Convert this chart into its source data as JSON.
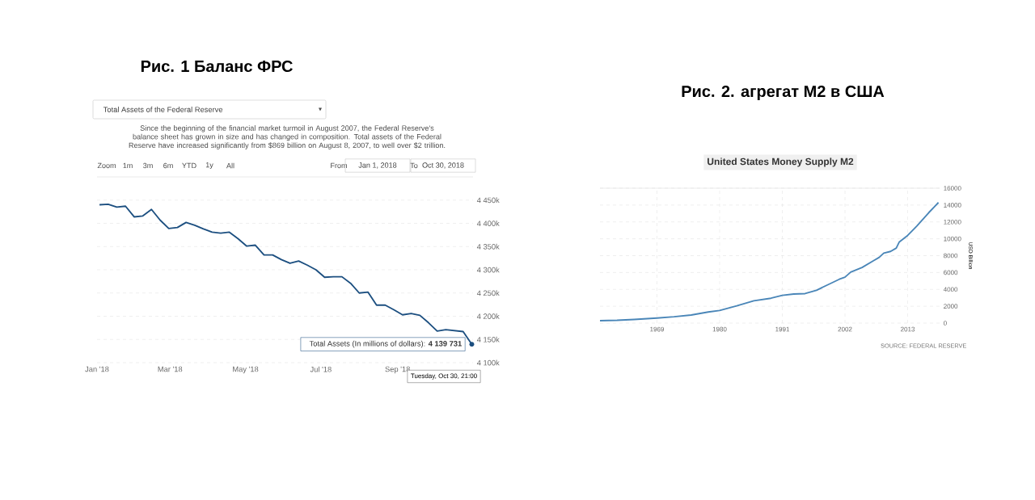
{
  "chart_data": [
    {
      "type": "line",
      "title": "Рис. 1 Баланс ФРС",
      "subtitle": "Total Assets of the Federal Reserve",
      "x": [
        "2018-01-03",
        "2018-01-10",
        "2018-01-17",
        "2018-01-24",
        "2018-01-31",
        "2018-02-07",
        "2018-02-14",
        "2018-02-21",
        "2018-02-28",
        "2018-03-07",
        "2018-03-14",
        "2018-03-21",
        "2018-03-28",
        "2018-04-04",
        "2018-04-11",
        "2018-04-18",
        "2018-04-25",
        "2018-05-02",
        "2018-05-09",
        "2018-05-16",
        "2018-05-23",
        "2018-05-30",
        "2018-06-06",
        "2018-06-13",
        "2018-06-20",
        "2018-06-27",
        "2018-07-04",
        "2018-07-11",
        "2018-07-18",
        "2018-07-25",
        "2018-08-01",
        "2018-08-08",
        "2018-08-15",
        "2018-08-22",
        "2018-08-29",
        "2018-09-05",
        "2018-09-12",
        "2018-09-19",
        "2018-09-26",
        "2018-10-03",
        "2018-10-10",
        "2018-10-17",
        "2018-10-24",
        "2018-10-31"
      ],
      "series": [
        {
          "color": "#1c4f80",
          "values": [
            4440000,
            4441000,
            4435000,
            4437000,
            4414000,
            4416000,
            4430000,
            4407000,
            4389000,
            4391000,
            4402000,
            4396000,
            4388000,
            4381000,
            4379000,
            4381000,
            4367000,
            4351000,
            4353000,
            4332000,
            4332000,
            4322000,
            4314000,
            4319000,
            4310000,
            4300000,
            4284000,
            4285000,
            4285000,
            4271000,
            4250000,
            4252000,
            4224000,
            4224000,
            4214000,
            4203000,
            4206000,
            4202000,
            4186000,
            4168000,
            4171000,
            4169000,
            4167000,
            4139731
          ]
        }
      ],
      "xlim": [
        "2018-01-01",
        "2018-11-01"
      ],
      "xticks": [
        {
          "value": "2018-01-01",
          "label": "Jan '18"
        },
        {
          "value": "2018-03-01",
          "label": "Mar '18"
        },
        {
          "value": "2018-05-01",
          "label": "May '18"
        },
        {
          "value": "2018-07-01",
          "label": "Jul '18"
        },
        {
          "value": "2018-09-01",
          "label": "Sep '18"
        }
      ],
      "ylim": [
        4100000,
        4500000
      ],
      "yticks": [
        {
          "value": 4100000,
          "label": "4 100k"
        },
        {
          "value": 4150000,
          "label": "4 150k"
        },
        {
          "value": 4200000,
          "label": "4 200k"
        },
        {
          "value": 4250000,
          "label": "4 250k"
        },
        {
          "value": 4300000,
          "label": "4 300k"
        },
        {
          "value": 4350000,
          "label": "4 350k"
        },
        {
          "value": 4400000,
          "label": "4 400k"
        },
        {
          "value": 4450000,
          "label": "4 450k"
        }
      ],
      "grid": "y",
      "annotations": [
        "Since the beginning of the financial market turmoil in August 2007, the Federal Reserve's balance sheet has grown in size and has changed in composition. Total assets of the Federal Reserve have increased significantly from $869 billion on August 8, 2007, to well over $2 trillion.",
        "Zoom",
        "1m",
        "3m",
        "6m",
        "YTD",
        "1y",
        "All",
        "From",
        "Jan 1, 2018",
        "To",
        "Oct 30, 2018",
        {
          "text": "Total Assets (In millions of dollars): **4 139 731**",
          "x": "2018-10-31",
          "y": 4139731
        },
        "Tuesday, Oct 30, 21:00"
      ]
    },
    {
      "type": "line",
      "title": "Рис. 2. агрегат М2 в США",
      "subtitle": "United States Money Supply M2",
      "ylabel": "USD Billion",
      "x": [
        1959,
        1962,
        1965,
        1969,
        1972,
        1975,
        1978,
        1980,
        1983,
        1986,
        1989,
        1991,
        1993,
        1995,
        1997,
        1999,
        2001,
        2002,
        2003,
        2005,
        2007,
        2008,
        2008.8,
        2010,
        2011,
        2011.5,
        2013,
        2014.6,
        2016.7,
        2018.4
      ],
      "series": [
        {
          "color": "#4a86b8",
          "values": [
            290,
            330,
            430,
            600,
            750,
            960,
            1320,
            1500,
            2050,
            2650,
            2950,
            3300,
            3450,
            3500,
            3900,
            4550,
            5200,
            5450,
            6050,
            6600,
            7400,
            7800,
            8300,
            8500,
            8900,
            9600,
            10400,
            11500,
            13100,
            14300
          ]
        }
      ],
      "xlim": [
        1959,
        2018.6
      ],
      "xticks": [
        1969,
        1980,
        1991,
        2002,
        2013
      ],
      "ylim": [
        0,
        16000
      ],
      "yticks": [
        0,
        2000,
        4000,
        6000,
        8000,
        10000,
        12000,
        14000,
        16000
      ],
      "grid": true,
      "annotations": [
        "SOURCE: FEDERAL RESERVE"
      ]
    }
  ]
}
